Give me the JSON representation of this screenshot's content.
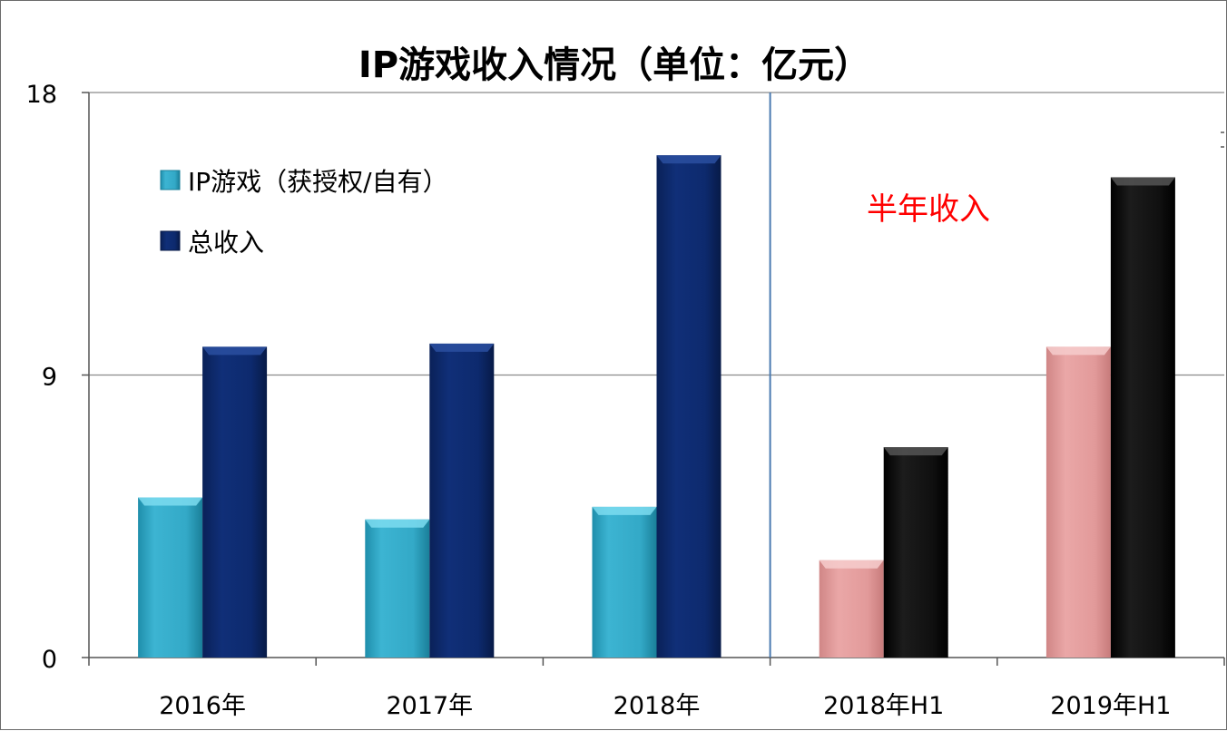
{
  "chart_data": {
    "type": "bar",
    "title": "IP游戏收入情况（单位：亿元）",
    "categories": [
      "2016年",
      "2017年",
      "2018年",
      "2018年H1",
      "2019年H1"
    ],
    "series": [
      {
        "name": "IP游戏（获授权/自有）",
        "values": [
          5.1,
          4.4,
          4.8,
          3.1,
          9.9
        ]
      },
      {
        "name": "总收入",
        "values": [
          9.9,
          10.0,
          16.0,
          6.7,
          15.3
        ]
      }
    ],
    "yticks": [
      0,
      9,
      18
    ],
    "ylim": [
      0,
      18
    ],
    "xlabel": "",
    "ylabel": "",
    "grid": true,
    "legend": "top-left",
    "annotation": "半年收入",
    "colors": {
      "ip_full_year": "#2fa8c8",
      "total_full_year": "#0d2a6e",
      "ip_half_year": "#e29a9a",
      "total_half_year": "#0d0d0d",
      "separator": "#4a7ab0",
      "grid": "#8a8a8a"
    }
  }
}
